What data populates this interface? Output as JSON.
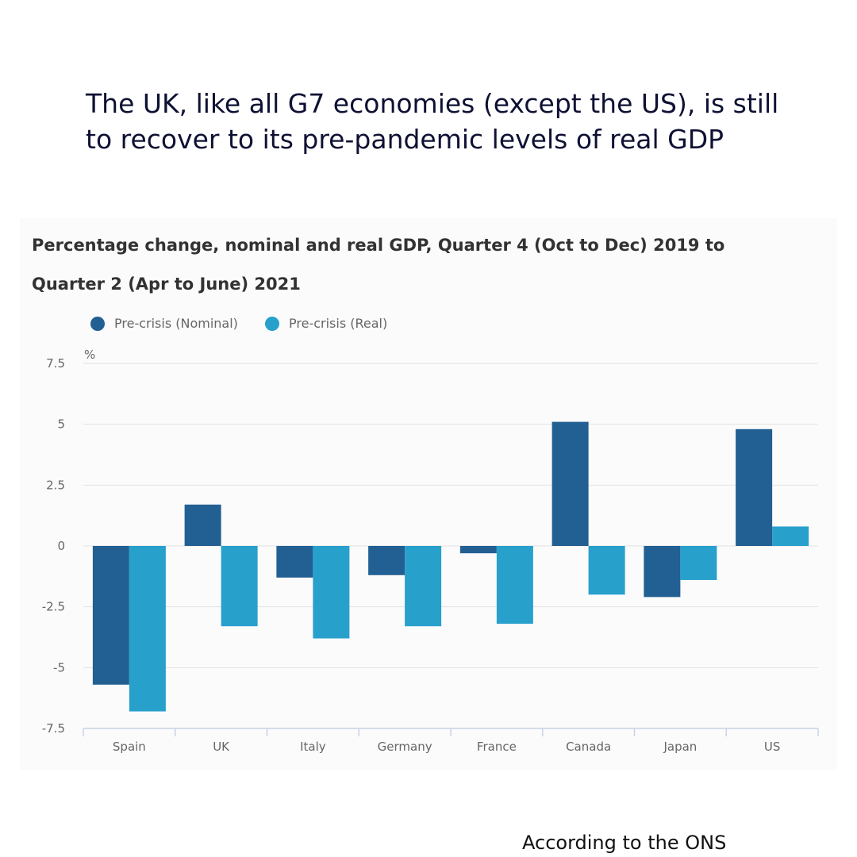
{
  "headline": "The UK, like all G7 economies (except the US), is still to recover to its pre-pandemic levels of real GDP",
  "source_note": "According to the ONS",
  "colors": {
    "nominal": "#225f92",
    "real": "#27a0cc"
  },
  "chart_data": {
    "type": "bar",
    "title": "Percentage change, nominal and real GDP, Quarter 4 (Oct to Dec) 2019 to Quarter 2 (Apr to June) 2021",
    "ylabel": "%",
    "ylim": [
      -7.5,
      7.5
    ],
    "yticks": [
      "7.5",
      "5",
      "2.5",
      "0",
      "-2.5",
      "-5",
      "-7.5"
    ],
    "ytick_values": [
      7.5,
      5,
      2.5,
      0,
      -2.5,
      -5,
      -7.5
    ],
    "grid": true,
    "legend_position": "top-left",
    "categories": [
      "Spain",
      "UK",
      "Italy",
      "Germany",
      "France",
      "Canada",
      "Japan",
      "US"
    ],
    "series": [
      {
        "name": "Pre-crisis (Nominal)",
        "values": [
          -5.7,
          1.7,
          -1.3,
          -1.2,
          -0.3,
          5.1,
          -2.1,
          4.8
        ]
      },
      {
        "name": "Pre-crisis (Real)",
        "values": [
          -6.8,
          -3.3,
          -3.8,
          -3.3,
          -3.2,
          -2.0,
          -1.4,
          0.8
        ]
      }
    ]
  }
}
